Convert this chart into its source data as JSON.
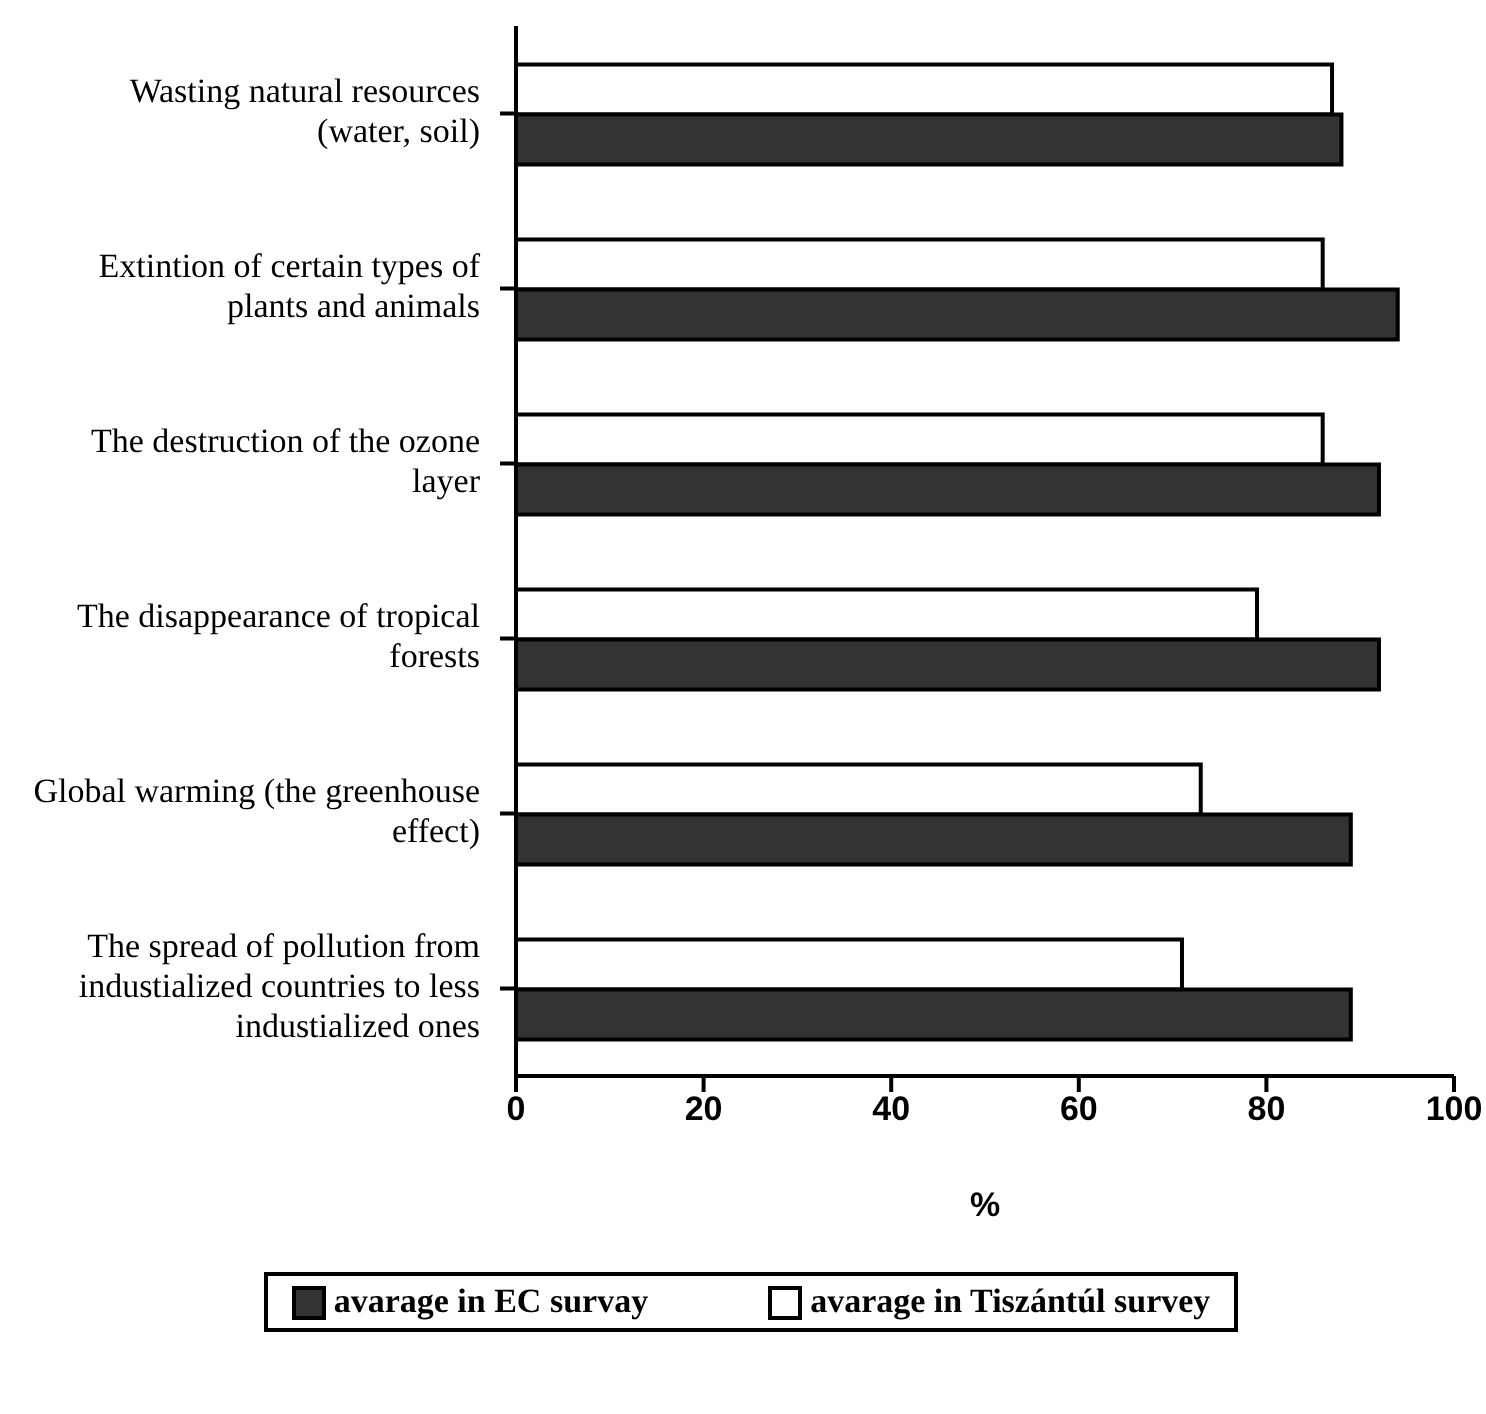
{
  "chart_data": {
    "type": "bar",
    "orientation": "horizontal",
    "xlabel": "%",
    "categories": [
      "Wasting natural resources (water, soil)",
      "Extintion of certain types of plants and animals",
      "The destruction of the ozone layer",
      "The disappearance of tropical forests",
      "Global warming (the greenhouse effect)",
      "The spread of pollution from industialized countries to less industialized ones"
    ],
    "series": [
      {
        "name": "avarage in Tiszántúl survey",
        "color": "#ffffff",
        "values": [
          87,
          86,
          86,
          79,
          73,
          71
        ]
      },
      {
        "name": "avarage in EC survay",
        "color": "#333333",
        "values": [
          88,
          94,
          92,
          92,
          89,
          89
        ]
      }
    ],
    "xlim": [
      0,
      100
    ],
    "xticks": [
      0,
      20,
      40,
      60,
      80,
      100
    ],
    "legend": "bottom"
  }
}
